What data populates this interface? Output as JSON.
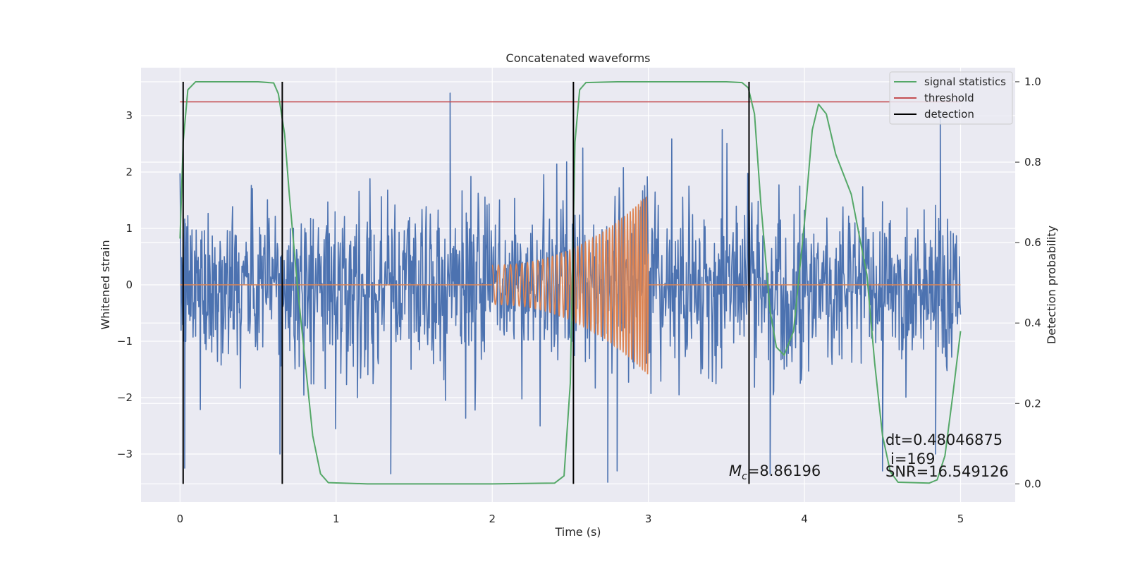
{
  "chart_data": {
    "type": "line",
    "title": "Concatenated waveforms",
    "xlabel": "Time (s)",
    "ylabel": "Whitened strain",
    "y2label": "Detection probability",
    "xlim": [
      -0.25,
      5.35
    ],
    "ylim": [
      -3.85,
      3.85
    ],
    "y2lim": [
      -0.045,
      1.035
    ],
    "xticks": [
      0,
      1,
      2,
      3,
      4,
      5
    ],
    "yticks": [
      -3,
      -2,
      -1,
      0,
      1,
      2,
      3
    ],
    "y2ticks": [
      0.0,
      0.2,
      0.4,
      0.6,
      0.8,
      1.0
    ],
    "grid": true,
    "legend_position": "top-right",
    "colors": {
      "noise": "#4c72b0",
      "signal": "#dd8452",
      "statistic": "#55a868",
      "threshold": "#c44e52",
      "detection": "#000000",
      "background": "#eaeaf2",
      "grid": "#ffffff"
    },
    "series": [
      {
        "name": "",
        "role": "whitened noise + signal",
        "axis": "left",
        "x_range": [
          0,
          5
        ],
        "envelope_sigma": 0.75,
        "extreme_points": [
          [
            0.03,
            -3.25
          ],
          [
            0.64,
            -3.0
          ],
          [
            1.35,
            -3.35
          ],
          [
            1.73,
            3.4
          ],
          [
            2.74,
            -3.5
          ],
          [
            2.8,
            -3.3
          ],
          [
            3.78,
            -3.35
          ],
          [
            4.5,
            -3.3
          ],
          [
            4.84,
            -3.0
          ],
          [
            4.87,
            3.05
          ]
        ]
      },
      {
        "name": "",
        "role": "injected chirp waveform",
        "axis": "left",
        "x_range": [
          2.0,
          3.0
        ],
        "amplitude_start": 0.35,
        "amplitude_end": 1.6,
        "frequency_start_hz": 25,
        "frequency_end_hz": 62
      },
      {
        "name": "signal statistics",
        "axis": "right",
        "x": [
          0.0,
          0.02,
          0.05,
          0.1,
          0.2,
          0.5,
          0.6,
          0.63,
          0.67,
          0.7,
          0.75,
          0.85,
          0.9,
          0.95,
          1.2,
          2.0,
          2.4,
          2.46,
          2.5,
          2.53,
          2.56,
          2.6,
          2.8,
          3.5,
          3.6,
          3.64,
          3.68,
          3.72,
          3.78,
          3.82,
          3.87,
          3.93,
          4.0,
          4.05,
          4.09,
          4.14,
          4.2,
          4.3,
          4.4,
          4.45,
          4.5,
          4.55,
          4.6,
          4.8,
          4.85,
          4.9,
          4.95,
          5.0
        ],
        "y": [
          0.61,
          0.85,
          0.98,
          1.0,
          1.0,
          1.0,
          0.997,
          0.97,
          0.87,
          0.72,
          0.5,
          0.12,
          0.025,
          0.003,
          0.0,
          0.0,
          0.002,
          0.02,
          0.25,
          0.85,
          0.98,
          0.998,
          1.0,
          1.0,
          0.998,
          0.985,
          0.92,
          0.7,
          0.43,
          0.34,
          0.32,
          0.38,
          0.65,
          0.88,
          0.944,
          0.92,
          0.82,
          0.72,
          0.52,
          0.3,
          0.12,
          0.03,
          0.004,
          0.002,
          0.01,
          0.07,
          0.22,
          0.38
        ]
      },
      {
        "name": "threshold",
        "axis": "right",
        "x": [
          0.0,
          5.0
        ],
        "y": [
          0.95,
          0.95
        ]
      },
      {
        "name": "detection",
        "axis": "right",
        "vlines_x": [
          0.02,
          0.655,
          2.52,
          3.645
        ],
        "y_range": [
          0.0,
          1.0
        ]
      }
    ],
    "annotations": {
      "mc_symbol": "M",
      "mc_subscript": "c",
      "mc_value": "=8.86196",
      "dt": "dt=0.48046875",
      "index": "i=169",
      "snr": "SNR=16.549126"
    }
  }
}
